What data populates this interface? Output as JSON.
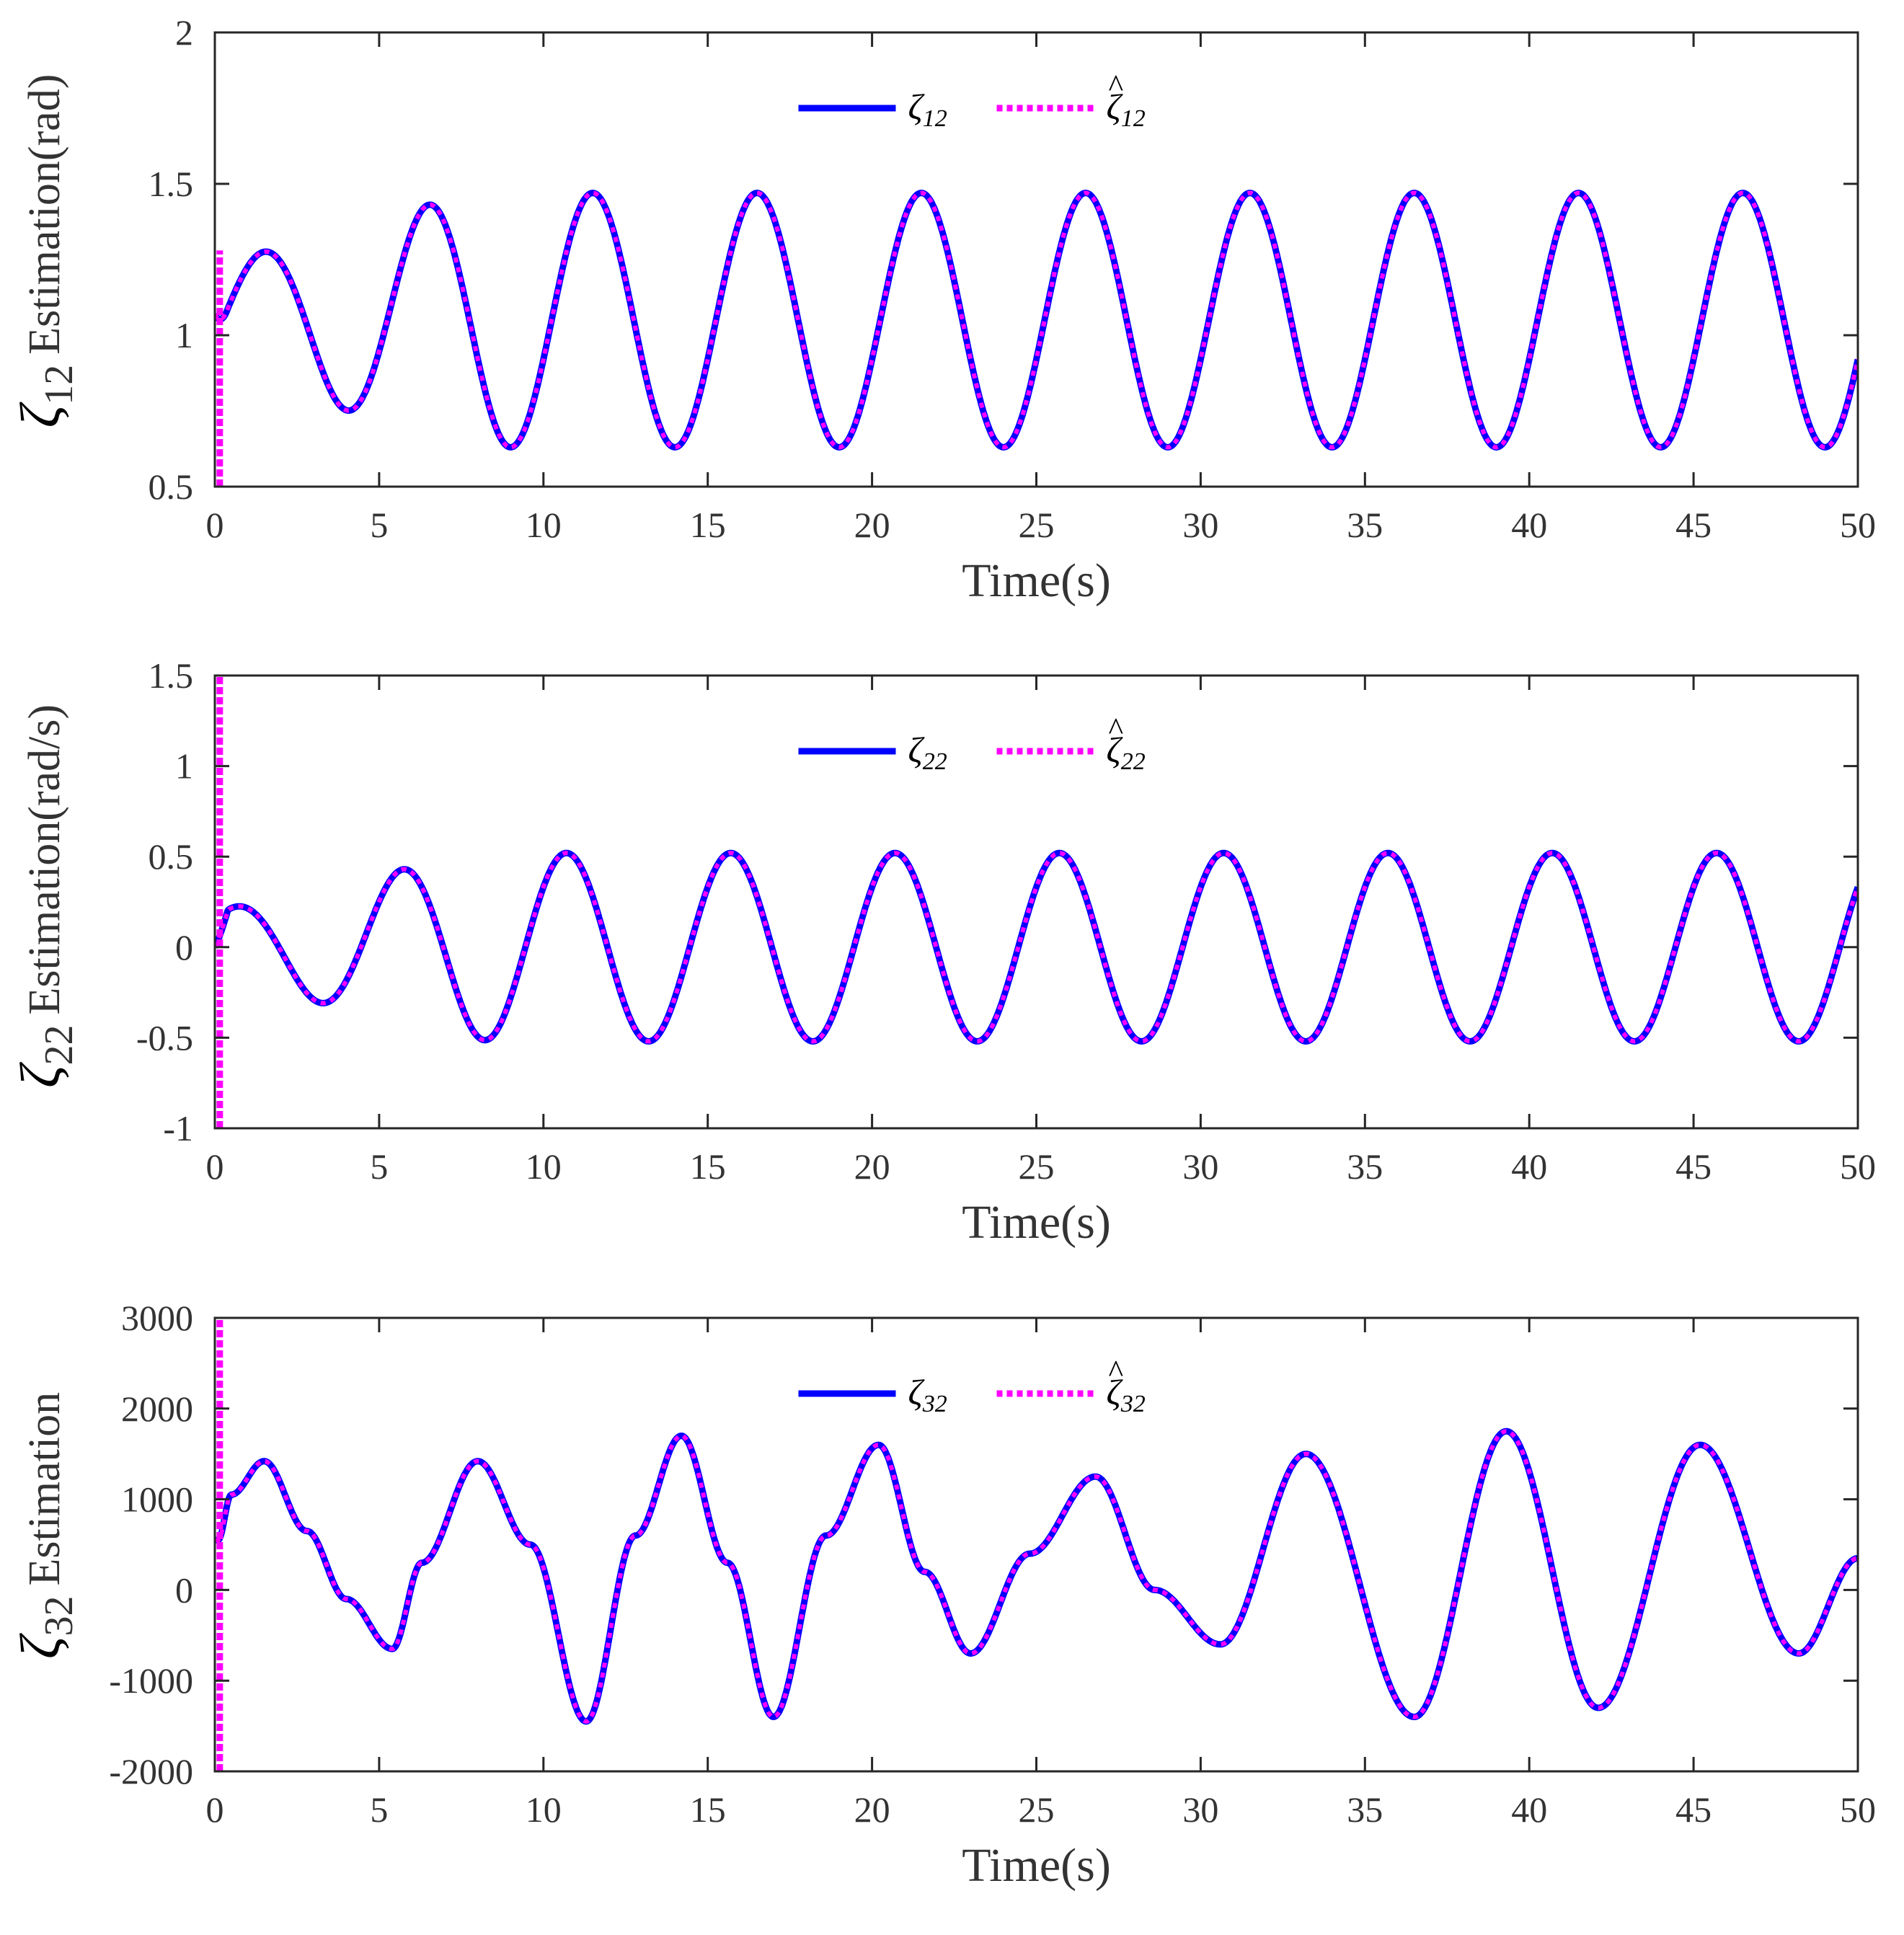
{
  "chart_data": [
    {
      "type": "line",
      "panel": "top",
      "ylabel_symbol": "ζ",
      "ylabel_subscript": "12",
      "ylabel_text": "Estimation(rad)",
      "xlabel": "Time(s)",
      "xlim": [
        0,
        50
      ],
      "ylim": [
        0.5,
        2
      ],
      "xticks": [
        0,
        5,
        10,
        15,
        20,
        25,
        30,
        35,
        40,
        45,
        50
      ],
      "yticks": [
        0.5,
        1,
        1.5,
        2
      ],
      "ytick_labels": [
        "0.5",
        "1",
        "1.5",
        "2"
      ],
      "grid": false,
      "legend_position": "top-center",
      "legend": [
        {
          "symbol": "ζ",
          "subscript": "12",
          "hat": false,
          "style": "solid"
        },
        {
          "symbol": "ζ",
          "subscript": "12",
          "hat": true,
          "style": "dotted"
        }
      ],
      "signal": {
        "kind": "sine",
        "offset": 1.05,
        "amplitude": 0.42,
        "period": 5.0,
        "peak_time": 1.5,
        "initial_value": 1.07,
        "initial_amplitude": 0.21,
        "settle_time": 9
      },
      "estimate_spike": [
        0.5,
        1.28
      ],
      "series": [
        {
          "name": "ζ12",
          "color": "#0000ff",
          "style": "solid"
        },
        {
          "name": "ζ̂12",
          "color": "#ff00ff",
          "style": "dotted"
        }
      ]
    },
    {
      "type": "line",
      "panel": "middle",
      "ylabel_symbol": "ζ",
      "ylabel_subscript": "22",
      "ylabel_text": "Estimation(rad/s)",
      "xlabel": "Time(s)",
      "xlim": [
        0,
        50
      ],
      "ylim": [
        -1,
        1.5
      ],
      "xticks": [
        0,
        5,
        10,
        15,
        20,
        25,
        30,
        35,
        40,
        45,
        50
      ],
      "yticks": [
        -1,
        -0.5,
        0,
        0.5,
        1,
        1.5
      ],
      "ytick_labels": [
        "-1",
        "-0.5",
        "0",
        "0.5",
        "1",
        "1.5"
      ],
      "grid": false,
      "legend_position": "top-center",
      "legend": [
        {
          "symbol": "ζ",
          "subscript": "22",
          "hat": false,
          "style": "solid"
        },
        {
          "symbol": "ζ",
          "subscript": "22",
          "hat": true,
          "style": "dotted"
        }
      ],
      "signal": {
        "kind": "sine",
        "offset": 0,
        "amplitude": 0.52,
        "period": 5.0,
        "peak_time": 0.7,
        "initial_value": 0.0,
        "initial_amplitude": 0.22,
        "settle_time": 9
      },
      "estimate_spike": [
        -1,
        1.5
      ],
      "series": [
        {
          "name": "ζ22",
          "color": "#0000ff",
          "style": "solid"
        },
        {
          "name": "ζ̂22",
          "color": "#ff00ff",
          "style": "dotted"
        }
      ]
    },
    {
      "type": "line",
      "panel": "bottom",
      "ylabel_symbol": "ζ",
      "ylabel_subscript": "32",
      "ylabel_text": "Estimation",
      "xlabel": "Time(s)",
      "xlim": [
        0,
        50
      ],
      "ylim": [
        -2000,
        3000
      ],
      "xticks": [
        0,
        5,
        10,
        15,
        20,
        25,
        30,
        35,
        40,
        45,
        50
      ],
      "yticks": [
        -2000,
        -1000,
        0,
        1000,
        2000,
        3000
      ],
      "ytick_labels": [
        "-2000",
        "-1000",
        "0",
        "1000",
        "2000",
        "3000"
      ],
      "grid": false,
      "legend_position": "top-center",
      "legend": [
        {
          "symbol": "ζ",
          "subscript": "32",
          "hat": false,
          "style": "solid"
        },
        {
          "symbol": "ζ",
          "subscript": "32",
          "hat": true,
          "style": "dotted"
        }
      ],
      "signal": {
        "kind": "points",
        "points": [
          [
            0.1,
            550
          ],
          [
            0.5,
            1050
          ],
          [
            1.5,
            1420
          ],
          [
            2.8,
            650
          ],
          [
            4,
            -100
          ],
          [
            5.4,
            -650
          ],
          [
            6.3,
            300
          ],
          [
            8.0,
            1420
          ],
          [
            9.6,
            500
          ],
          [
            11.3,
            -1450
          ],
          [
            12.8,
            600
          ],
          [
            14.2,
            1700
          ],
          [
            15.6,
            300
          ],
          [
            17.0,
            -1400
          ],
          [
            18.6,
            600
          ],
          [
            20.2,
            1600
          ],
          [
            21.6,
            200
          ],
          [
            23.0,
            -700
          ],
          [
            24.8,
            400
          ],
          [
            26.8,
            1250
          ],
          [
            28.6,
            0
          ],
          [
            30.6,
            -600
          ],
          [
            33.2,
            1500
          ],
          [
            36.5,
            -1400
          ],
          [
            39.3,
            1750
          ],
          [
            42.1,
            -1300
          ],
          [
            45.2,
            1600
          ],
          [
            48.2,
            -700
          ],
          [
            50,
            350
          ]
        ]
      },
      "estimate_spike": [
        -2000,
        3000
      ],
      "series": [
        {
          "name": "ζ32",
          "color": "#0000ff",
          "style": "solid"
        },
        {
          "name": "ζ̂32",
          "color": "#ff00ff",
          "style": "dotted"
        }
      ]
    }
  ]
}
